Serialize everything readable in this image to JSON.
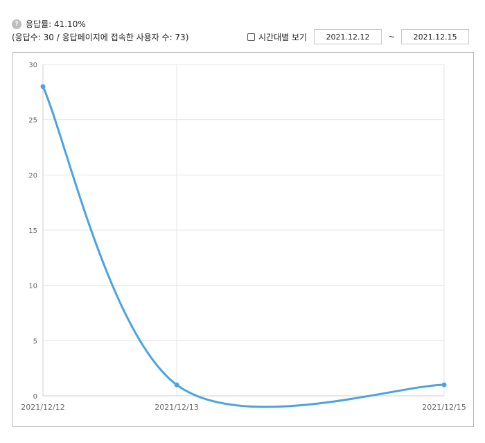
{
  "summary": {
    "help_icon": "?",
    "rate_text": "응답률: 41.10%",
    "counts_text": "(응답수: 30 / 응답페이지에 접속한 사용자 수: 73)"
  },
  "controls": {
    "hourly_checkbox_label": "시간대별 보기",
    "hourly_checked": false,
    "start_date": "2021.12.12",
    "range_separator": "~",
    "end_date": "2021.12.15"
  },
  "colors": {
    "line": "#4aa3df",
    "grid": "#e6e6e6",
    "axis_text": "#666666"
  },
  "chart_data": {
    "type": "line",
    "x": [
      "2021/12/12",
      "2021/12/13",
      "2021/12/15"
    ],
    "x_tick_labels": [
      "2021/12/12",
      "2021/12/13",
      "2021/12/15"
    ],
    "series": [
      {
        "values": [
          28,
          1,
          1
        ]
      }
    ],
    "ylim": [
      0,
      30
    ],
    "y_ticks": [
      0,
      5,
      10,
      15,
      20,
      25,
      30
    ],
    "grid": true,
    "smooth": true,
    "title": "",
    "xlabel": "",
    "ylabel": ""
  }
}
